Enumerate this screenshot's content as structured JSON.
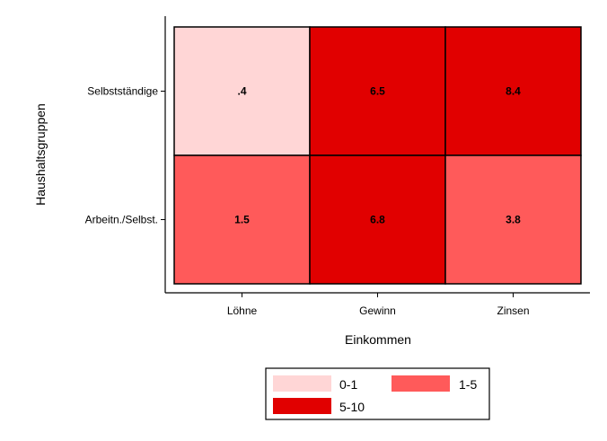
{
  "chart_data": {
    "type": "heatmap",
    "title": "",
    "xlabel": "Einkommen",
    "ylabel": "Haushaltsgruppen",
    "x_categories": [
      "Löhne",
      "Gewinn",
      "Zinsen"
    ],
    "y_categories": [
      "Selbstständige",
      "Arbeitn./Selbst."
    ],
    "values": [
      [
        0.4,
        6.5,
        8.4
      ],
      [
        1.5,
        6.8,
        3.8
      ]
    ],
    "value_labels": [
      [
        ".4",
        "6.5",
        "8.4"
      ],
      [
        "1.5",
        "6.8",
        "3.8"
      ]
    ],
    "bins": [
      {
        "label": "0-1",
        "min": 0,
        "max": 1,
        "color": "#ffd6d6"
      },
      {
        "label": "1-5",
        "min": 1,
        "max": 5,
        "color": "#ff5a5a"
      },
      {
        "label": "5-10",
        "min": 5,
        "max": 10,
        "color": "#e10000"
      }
    ],
    "legend_placement": "bottom-center",
    "grid": false
  }
}
